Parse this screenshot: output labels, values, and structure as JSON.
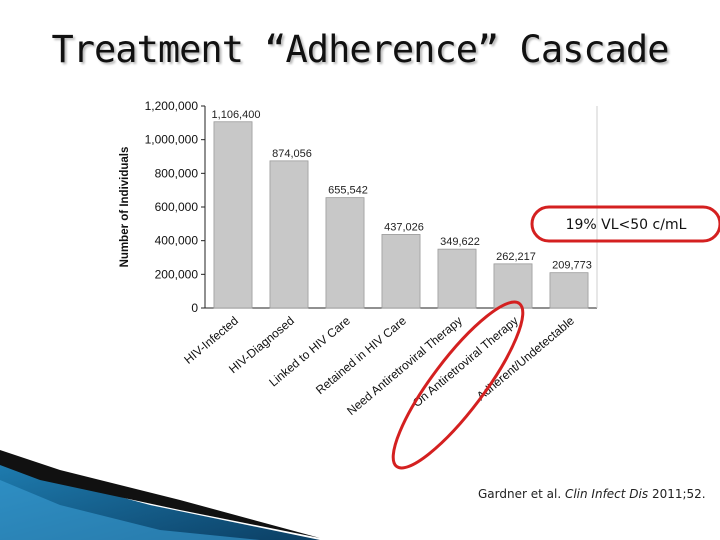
{
  "slide": {
    "title": "Treatment “Adherence” Cascade",
    "callout": "19% VL<50 c/mL",
    "citation_prefix": "Gardner et al. ",
    "citation_journal": "Clin Infect Dis",
    "citation_suffix": " 2011;52.",
    "callout_color": "#d42020"
  },
  "chart_data": {
    "type": "bar",
    "categories": [
      "HIV-Infected",
      "HIV-Diagnosed",
      "Linked to HIV Care",
      "Retained in HIV Care",
      "Need Antiretroviral Therapy",
      "On Antiretroviral Therapy",
      "Adherent/Undetectable"
    ],
    "values": [
      1106400,
      874056,
      655542,
      437026,
      349622,
      262217,
      209773
    ],
    "data_labels": [
      "1,106,400",
      "874,056",
      "655,542",
      "437,026",
      "349,622",
      "262,217",
      "209,773"
    ],
    "ylabel": "Number of Individuals",
    "ylim": [
      0,
      1200000
    ],
    "yticks": [
      0,
      200000,
      400000,
      600000,
      800000,
      1000000,
      1200000
    ],
    "ytick_labels": [
      "0",
      "200,000",
      "400,000",
      "600,000",
      "800,000",
      "1,000,000",
      "1,200,000"
    ],
    "bar_color": "#c8c8c8",
    "grid": false
  }
}
